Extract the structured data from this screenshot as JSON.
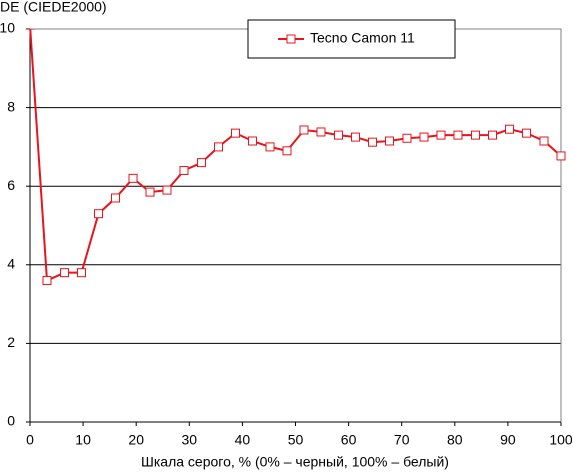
{
  "chart_data": {
    "type": "line",
    "y_label": "DE (CIEDE2000)",
    "x_label": "Шкала серого, % (0% – черный, 100% – белый)",
    "x": [
      0,
      3.2,
      6.5,
      9.7,
      12.9,
      16.1,
      19.4,
      22.6,
      25.8,
      29,
      32.3,
      35.5,
      38.7,
      41.9,
      45.2,
      48.4,
      51.6,
      54.8,
      58.1,
      61.3,
      64.5,
      67.7,
      71,
      74.2,
      77.4,
      80.6,
      83.9,
      87.1,
      90.3,
      93.5,
      96.8,
      100
    ],
    "series": [
      {
        "name": "Tecno Camon 11",
        "color": "#e8141c",
        "values": [
          10.1,
          3.6,
          3.8,
          3.8,
          5.3,
          5.7,
          6.2,
          5.85,
          5.9,
          6.4,
          6.6,
          7.0,
          7.35,
          7.15,
          7.0,
          6.9,
          7.43,
          7.38,
          7.3,
          7.25,
          7.12,
          7.15,
          7.22,
          7.25,
          7.3,
          7.3,
          7.3,
          7.3,
          7.45,
          7.35,
          7.15,
          6.77
        ]
      }
    ],
    "xlim": [
      0,
      100
    ],
    "xticks": [
      0,
      10,
      20,
      30,
      40,
      50,
      60,
      70,
      80,
      90,
      100
    ],
    "ylim": [
      0,
      10
    ],
    "yticks": [
      0,
      2,
      4,
      6,
      8,
      10
    ],
    "grid": true,
    "legend": "top"
  }
}
